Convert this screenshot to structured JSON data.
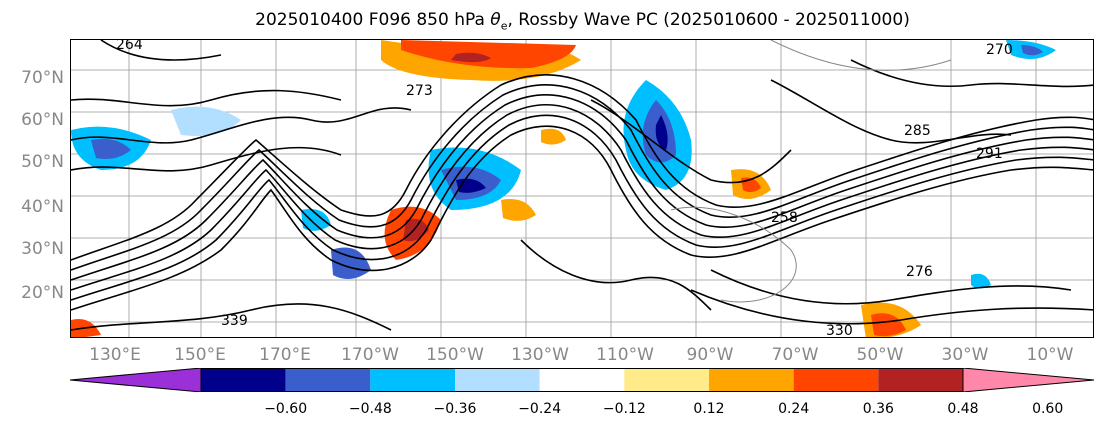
{
  "title_prefix": "2025010400 F096 850 hPa ",
  "title_symbol": "θ",
  "title_sub": "e",
  "title_suffix": ", Rossby Wave PC (2025010600 - 2025011000)",
  "lat_labels": [
    "70°N",
    "60°N",
    "50°N",
    "40°N",
    "30°N",
    "20°N"
  ],
  "lon_labels": [
    "130°E",
    "150°E",
    "170°E",
    "170°W",
    "150°W",
    "130°W",
    "110°W",
    "90°W",
    "70°W",
    "50°W",
    "30°W",
    "10°W"
  ],
  "contour_labels": [
    "264",
    "273",
    "285",
    "291",
    "270",
    "258",
    "276",
    "339",
    "330"
  ],
  "colorbar": {
    "ticks": [
      "−0.60",
      "−0.48",
      "−0.36",
      "−0.24",
      "−0.12",
      "0.12",
      "0.24",
      "0.36",
      "0.48",
      "0.60"
    ],
    "colors": [
      "#9b30d9",
      "#00008b",
      "#3a5fcd",
      "#00bfff",
      "#b2dfff",
      "#ffffff",
      "#ffeb8a",
      "#ffa500",
      "#ff4500",
      "#b22222",
      "#ff88aa"
    ]
  }
}
